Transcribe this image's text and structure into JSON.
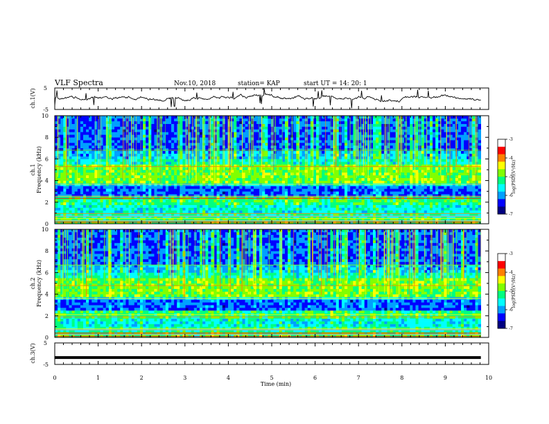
{
  "header": {
    "title": "VLF Spectra",
    "date": "Nov.10, 2018",
    "station": "station= KAP",
    "start": "start  UT  =    14: 20: 1"
  },
  "colors": {
    "background": "#ffffff",
    "trace": "#000000"
  },
  "chart_data": [
    {
      "type": "line",
      "panel": "ch1",
      "ylabel": "ch.1(V)",
      "ylim": [
        -5,
        5
      ],
      "yticks": [
        "5",
        "-5"
      ],
      "xlim": [
        0,
        10
      ],
      "series": [
        {
          "x_range": [
            0,
            9.82
          ],
          "approx_level": 0.5,
          "range": [
            -2.5,
            3.5
          ]
        }
      ]
    },
    {
      "type": "heatmap",
      "panel": "ch1",
      "ylabel": "ch.1\nFrequency (kHz)",
      "ylim": [
        0,
        10
      ],
      "yticks": [
        "0",
        "2",
        "4",
        "6",
        "8",
        "10"
      ],
      "xlim": [
        0,
        10
      ],
      "data_extent_min": 9.82,
      "z_scale": "log(PSD)(V²/Hz)",
      "zlim": [
        -7,
        -3
      ],
      "colorbar_ticks": [
        "-3",
        "-4",
        "-5",
        "-6",
        "-7"
      ],
      "colormap": [
        "#000080",
        "#0000ff",
        "#00a0ff",
        "#00ffff",
        "#00ff80",
        "#80ff00",
        "#ffff00",
        "#ff8000",
        "#ff0000",
        "#ffffff"
      ]
    },
    {
      "type": "heatmap",
      "panel": "ch2",
      "ylabel": "ch.2\nFrequency (kHz)",
      "ylim": [
        0,
        10
      ],
      "yticks": [
        "0",
        "2",
        "4",
        "6",
        "8",
        "10"
      ],
      "xlim": [
        0,
        10
      ],
      "data_extent_min": 9.82,
      "z_scale": "log(PSD)(V²/Hz)",
      "zlim": [
        -7,
        -3
      ],
      "colorbar_ticks": [
        "-3",
        "-4",
        "-5",
        "-6",
        "-7"
      ]
    },
    {
      "type": "line",
      "panel": "ch3",
      "ylabel": "ch.3(V)",
      "ylim": [
        -5,
        5
      ],
      "yticks": [
        "5",
        "0",
        "-5"
      ],
      "xlim": [
        0,
        10
      ],
      "series": [
        {
          "x_range": [
            0,
            9.82
          ],
          "value": -1.8
        }
      ]
    }
  ],
  "xaxis": {
    "label": "Time  (min)",
    "ticks": [
      "0",
      "1",
      "2",
      "3",
      "4",
      "5",
      "6",
      "7",
      "8",
      "9",
      "10"
    ]
  }
}
